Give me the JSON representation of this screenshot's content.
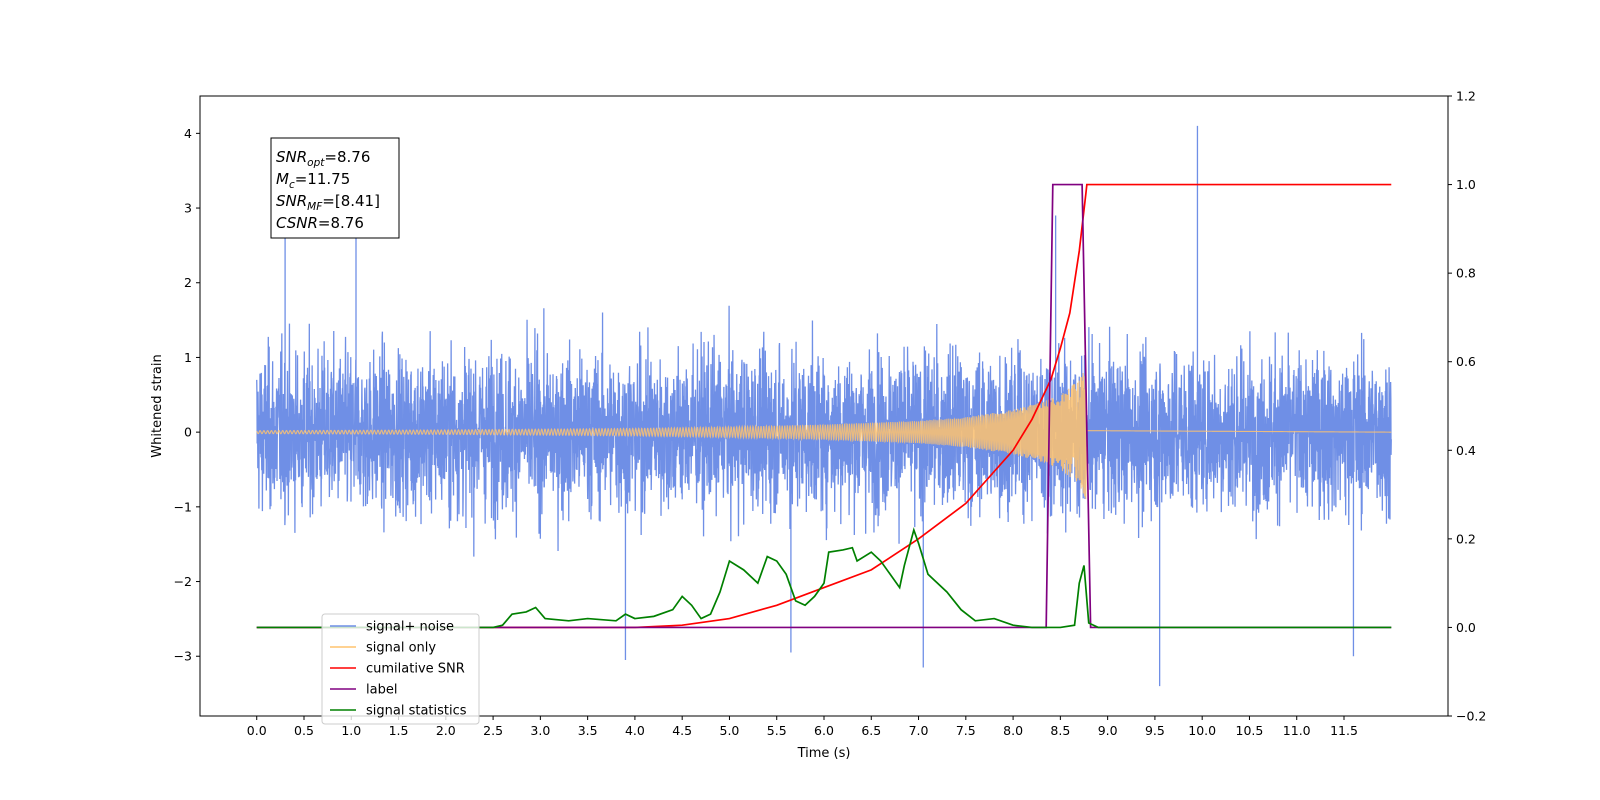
{
  "chart_data": {
    "type": "line",
    "xlabel": "Time (s)",
    "ylabel_left": "Whitened strain",
    "xlim": [
      -0.6,
      12.6
    ],
    "ylim_left": [
      -3.8,
      4.5
    ],
    "ylim_right": [
      -0.2,
      1.2
    ],
    "x_ticks": [
      "0.0",
      "0.5",
      "1.0",
      "1.5",
      "2.0",
      "2.5",
      "3.0",
      "3.5",
      "4.0",
      "4.5",
      "5.0",
      "5.5",
      "6.0",
      "6.5",
      "7.0",
      "7.5",
      "8.0",
      "8.5",
      "9.0",
      "9.5",
      "10.0",
      "10.5",
      "11.0",
      "11.5"
    ],
    "y_left_ticks": [
      "−3",
      "−2",
      "−1",
      "0",
      "1",
      "2",
      "3",
      "4"
    ],
    "y_right_ticks": [
      "−0.2",
      "0.0",
      "0.2",
      "0.4",
      "0.6",
      "0.8",
      "1.0",
      "1.2"
    ],
    "grid": false,
    "legend_position": "lower-left",
    "stats": [
      {
        "label": "SNR",
        "sub": "opt",
        "value": "=8.76"
      },
      {
        "label": "M",
        "sub": "c",
        "value": "=11.75"
      },
      {
        "label": "SNR",
        "sub": "MF",
        "value": "=[8.41]"
      },
      {
        "label": "CSNR",
        "sub": "",
        "value": "=8.76"
      }
    ],
    "legend": [
      {
        "label": "signal+ noise",
        "color": "#6f8fe6"
      },
      {
        "label": "signal only",
        "color": "#ffc36e"
      },
      {
        "label": "cumilative SNR",
        "color": "#ff0000"
      },
      {
        "label": "label",
        "color": "#800080"
      },
      {
        "label": "signal statistics",
        "color": "#008000"
      }
    ],
    "series": [
      {
        "name": "signal+ noise",
        "axis": "left",
        "kind": "noise",
        "color": "#6f8fe6",
        "x_range": [
          0.0,
          12.0
        ],
        "typical_amplitude": 1.2,
        "envelope_points": [
          [
            0.0,
            2.5
          ],
          [
            1.0,
            2.6
          ],
          [
            2.0,
            2.4
          ],
          [
            3.0,
            2.4
          ],
          [
            4.0,
            2.3
          ],
          [
            5.0,
            2.5
          ],
          [
            6.0,
            2.5
          ],
          [
            7.0,
            2.8
          ],
          [
            8.0,
            2.7
          ],
          [
            8.7,
            2.9
          ],
          [
            9.0,
            2.6
          ],
          [
            10.0,
            2.7
          ],
          [
            11.0,
            2.6
          ],
          [
            12.0,
            2.4
          ]
        ],
        "spikes": [
          [
            0.3,
            2.6
          ],
          [
            1.05,
            2.6
          ],
          [
            3.9,
            -3.05
          ],
          [
            5.65,
            -2.95
          ],
          [
            7.05,
            -3.15
          ],
          [
            8.45,
            2.9
          ],
          [
            9.55,
            -3.4
          ],
          [
            9.95,
            4.1
          ],
          [
            11.6,
            -3.0
          ]
        ]
      },
      {
        "name": "signal only",
        "axis": "left",
        "kind": "chirp",
        "color": "#ffc36e",
        "envelope": [
          [
            0.0,
            0.02
          ],
          [
            2.0,
            0.03
          ],
          [
            3.0,
            0.04
          ],
          [
            4.0,
            0.05
          ],
          [
            5.0,
            0.07
          ],
          [
            6.0,
            0.1
          ],
          [
            7.0,
            0.15
          ],
          [
            7.5,
            0.2
          ],
          [
            8.0,
            0.3
          ],
          [
            8.3,
            0.4
          ],
          [
            8.5,
            0.5
          ],
          [
            8.6,
            0.6
          ],
          [
            8.7,
            0.7
          ],
          [
            8.77,
            0.9
          ],
          [
            8.78,
            0.02
          ],
          [
            12.0,
            0.0
          ]
        ]
      },
      {
        "name": "cumilative SNR",
        "axis": "right",
        "color": "#ff0000",
        "points": [
          [
            0.0,
            0.0
          ],
          [
            4.0,
            0.0
          ],
          [
            4.5,
            0.005
          ],
          [
            5.0,
            0.02
          ],
          [
            5.5,
            0.05
          ],
          [
            6.0,
            0.09
          ],
          [
            6.5,
            0.13
          ],
          [
            7.0,
            0.2
          ],
          [
            7.5,
            0.28
          ],
          [
            8.0,
            0.4
          ],
          [
            8.2,
            0.47
          ],
          [
            8.4,
            0.56
          ],
          [
            8.5,
            0.63
          ],
          [
            8.6,
            0.71
          ],
          [
            8.7,
            0.85
          ],
          [
            8.77,
            0.98
          ],
          [
            8.78,
            1.0
          ],
          [
            12.0,
            1.0
          ]
        ]
      },
      {
        "name": "label",
        "axis": "right",
        "color": "#800080",
        "points": [
          [
            0.0,
            0.0
          ],
          [
            8.35,
            0.0
          ],
          [
            8.42,
            1.0
          ],
          [
            8.73,
            1.0
          ],
          [
            8.82,
            0.0
          ],
          [
            12.0,
            0.0
          ]
        ]
      },
      {
        "name": "signal statistics",
        "axis": "right",
        "color": "#008000",
        "points": [
          [
            0.0,
            0.0
          ],
          [
            2.5,
            0.0
          ],
          [
            2.6,
            0.005
          ],
          [
            2.7,
            0.03
          ],
          [
            2.85,
            0.035
          ],
          [
            2.95,
            0.045
          ],
          [
            3.05,
            0.02
          ],
          [
            3.3,
            0.015
          ],
          [
            3.5,
            0.02
          ],
          [
            3.8,
            0.015
          ],
          [
            3.9,
            0.03
          ],
          [
            4.0,
            0.02
          ],
          [
            4.2,
            0.025
          ],
          [
            4.4,
            0.04
          ],
          [
            4.5,
            0.07
          ],
          [
            4.6,
            0.05
          ],
          [
            4.7,
            0.02
          ],
          [
            4.8,
            0.03
          ],
          [
            4.9,
            0.08
          ],
          [
            5.0,
            0.15
          ],
          [
            5.15,
            0.13
          ],
          [
            5.3,
            0.1
          ],
          [
            5.4,
            0.16
          ],
          [
            5.5,
            0.15
          ],
          [
            5.6,
            0.12
          ],
          [
            5.7,
            0.06
          ],
          [
            5.8,
            0.05
          ],
          [
            5.9,
            0.07
          ],
          [
            6.0,
            0.1
          ],
          [
            6.05,
            0.17
          ],
          [
            6.2,
            0.175
          ],
          [
            6.3,
            0.18
          ],
          [
            6.35,
            0.15
          ],
          [
            6.5,
            0.17
          ],
          [
            6.6,
            0.15
          ],
          [
            6.7,
            0.12
          ],
          [
            6.8,
            0.09
          ],
          [
            6.85,
            0.14
          ],
          [
            6.95,
            0.22
          ],
          [
            7.0,
            0.19
          ],
          [
            7.1,
            0.12
          ],
          [
            7.3,
            0.08
          ],
          [
            7.45,
            0.04
          ],
          [
            7.6,
            0.015
          ],
          [
            7.8,
            0.02
          ],
          [
            8.0,
            0.005
          ],
          [
            8.2,
            0.0
          ],
          [
            8.5,
            0.0
          ],
          [
            8.65,
            0.005
          ],
          [
            8.7,
            0.1
          ],
          [
            8.75,
            0.14
          ],
          [
            8.8,
            0.01
          ],
          [
            8.9,
            0.0
          ],
          [
            12.0,
            0.0
          ]
        ]
      }
    ]
  }
}
